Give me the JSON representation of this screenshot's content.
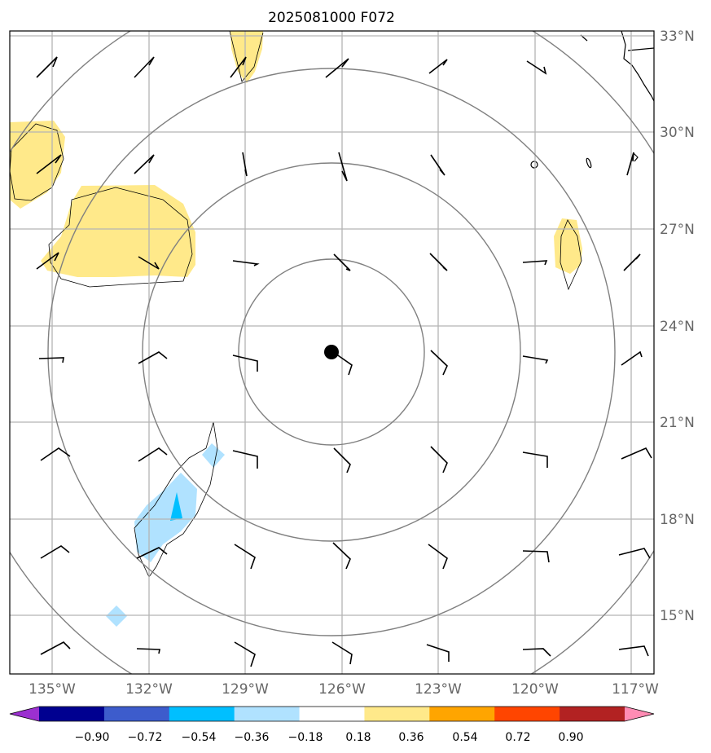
{
  "title": "2025081000 F072",
  "map": {
    "lon_labels": [
      "135°W",
      "132°W",
      "129°W",
      "126°W",
      "123°W",
      "120°W",
      "117°W"
    ],
    "lat_labels": [
      "33°N",
      "30°N",
      "27°N",
      "24°N",
      "21°N",
      "18°N",
      "15°N"
    ],
    "lon_range": [
      -136.3,
      -116.3
    ],
    "lat_range": [
      13.3,
      33.2
    ],
    "center": {
      "lon": -126.3,
      "lat": 23.2
    },
    "range_rings": 4,
    "grid": true
  },
  "colorbar": {
    "labels": [
      "−0.90",
      "−0.72",
      "−0.54",
      "−0.36",
      "−0.18",
      "0.18",
      "0.36",
      "0.54",
      "0.72",
      "0.90"
    ],
    "colors": [
      "#9b30d0",
      "#000090",
      "#3d5ccc",
      "#00bfff",
      "#b0e2ff",
      "#ffffff",
      "#ffe98a",
      "#ffa500",
      "#ff4500",
      "#b22222",
      "#ff8cb4"
    ]
  }
}
